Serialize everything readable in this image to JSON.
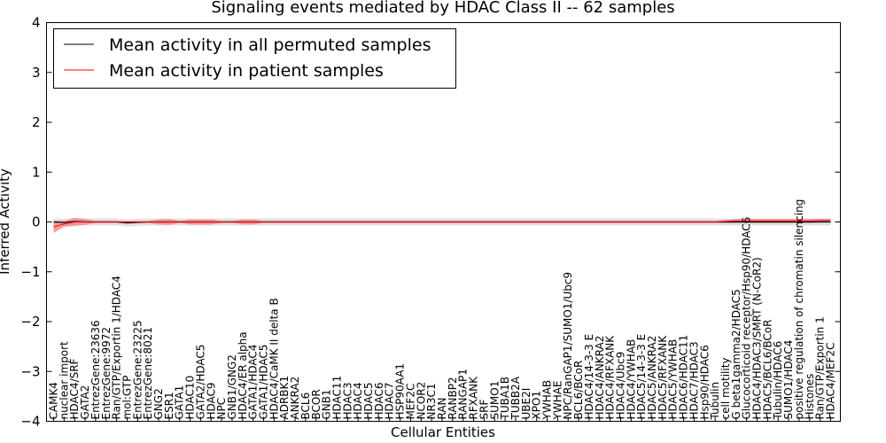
{
  "chart_data": {
    "type": "line",
    "title": "Signaling events mediated by HDAC Class II -- 62 samples",
    "xlabel": "Cellular Entities",
    "ylabel": "Inferred Activity",
    "ylim": [
      -4,
      4
    ],
    "yticks": [
      4,
      3,
      2,
      1,
      0,
      -1,
      -2,
      -3,
      -4
    ],
    "ytick_labels": [
      "4",
      "3",
      "2",
      "1",
      "0",
      "−1",
      "−2",
      "−3",
      "−4"
    ],
    "legend_position": "top-left",
    "categories": [
      "CAMK4",
      "nuclear import",
      "HDAC4/SRF",
      "GATA2",
      "EntrezGene:23636",
      "EntrezGene:9972",
      "Ran/GTP/Exportin 1/HDAC4",
      "mol:GTP",
      "EntrezGene:23225",
      "EntrezGene:8021",
      "GNG2",
      "ESR1",
      "GATA1",
      "HDAC10",
      "GATA2/HDAC5",
      "HDAC9",
      "NPC",
      "GNB1/GNG2",
      "HDAC4/ER alpha",
      "GATA1/HDAC4",
      "GATA1/HDAC5",
      "HDAC4/CaMK II delta B",
      "ADRBK1",
      "ANKRA2",
      "BCL6",
      "BCOR",
      "GNB1",
      "HDAC11",
      "HDAC3",
      "HDAC4",
      "HDAC5",
      "HDAC6",
      "HDAC7",
      "HSP90AA1",
      "MEF2C",
      "NCOR2",
      "NR3C1",
      "RAN",
      "RANBP2",
      "RANGAP1",
      "RFXANK",
      "SRF",
      "SUMO1",
      "TUBA1B",
      "TUBB2A",
      "UBE2I",
      "XPO1",
      "YWHAB",
      "YWHAE",
      "NPC/RanGAP1/SUMO1/Ubc9",
      "BCL6/BCoR",
      "HDAC4/14-3-3 E",
      "HDAC4/ANKRA2",
      "HDAC4/RFXANK",
      "HDAC4/Ubc9",
      "HDAC4/YWHAB",
      "HDAC5/14-3-3 E",
      "HDAC5/ANKRA2",
      "HDAC5/RFXANK",
      "HDAC5/YWHAB",
      "HDAC6/HDAC11",
      "HDAC7/HDAC3",
      "Hsp90/HDAC6",
      "Tubulin",
      "cell motility",
      "G beta1gamma2/HDAC5",
      "Glucocorticoid receptor/Hsp90/HDAC6",
      "HDAC4/HDAC3/SMRT (N-CoR2)",
      "HDAC5/BCL6/BCoR",
      "Tubulin/HDAC6",
      "SUMO1/HDAC4",
      "positive regulation of chromatin silencing",
      "Histones",
      "Ran/GTP/Exportin 1",
      "HDAC4/MEF2C"
    ],
    "series": [
      {
        "name": "Mean activity in all permuted samples",
        "color": "#000000",
        "values": [
          0.0,
          -0.01,
          0.01,
          0.0,
          0.0,
          0.0,
          0.0,
          -0.02,
          -0.01,
          0.0,
          0.0,
          0.0,
          0.0,
          0.0,
          0.0,
          0.0,
          0.0,
          0.0,
          0.0,
          0.0,
          0.0,
          0.0,
          0.0,
          0.0,
          0.0,
          0.0,
          0.0,
          0.0,
          0.0,
          0.0,
          0.0,
          0.0,
          0.0,
          0.0,
          0.0,
          0.0,
          0.0,
          0.0,
          0.0,
          0.0,
          0.0,
          0.0,
          0.0,
          0.0,
          0.0,
          0.0,
          0.0,
          0.0,
          0.0,
          0.0,
          0.0,
          0.0,
          0.0,
          0.0,
          0.0,
          0.0,
          0.0,
          0.0,
          0.0,
          0.0,
          0.0,
          0.0,
          0.0,
          0.0,
          0.0,
          0.0,
          0.0,
          0.0,
          0.0,
          0.0,
          0.0,
          0.0,
          0.0,
          0.0,
          0.0
        ]
      },
      {
        "name": "Mean activity in patient samples",
        "color": "#ff0000",
        "values": [
          -0.1,
          -0.04,
          0.0,
          0.0,
          0.0,
          0.0,
          0.0,
          0.0,
          0.0,
          0.0,
          0.0,
          0.0,
          0.0,
          0.0,
          0.0,
          0.0,
          0.0,
          0.0,
          0.0,
          0.0,
          0.0,
          0.0,
          0.0,
          0.0,
          0.0,
          0.0,
          0.0,
          0.0,
          0.0,
          0.0,
          0.0,
          0.0,
          0.0,
          0.0,
          0.0,
          0.0,
          0.0,
          0.0,
          0.0,
          0.0,
          0.0,
          0.0,
          0.0,
          0.0,
          0.0,
          0.0,
          0.0,
          0.0,
          0.0,
          0.0,
          0.0,
          0.0,
          0.0,
          0.0,
          0.0,
          0.0,
          0.0,
          0.0,
          0.0,
          0.0,
          0.0,
          0.0,
          0.0,
          0.0,
          0.01,
          0.02,
          0.02,
          0.02,
          0.02,
          0.02,
          0.02,
          0.02,
          0.02,
          0.03,
          0.03
        ]
      }
    ],
    "patient_band": [
      0.12,
      0.06,
      0.08,
      0.06,
      0.02,
      0.02,
      0.02,
      0.02,
      0.02,
      0.02,
      0.05,
      0.06,
      0.02,
      0.05,
      0.05,
      0.05,
      0.02,
      0.02,
      0.05,
      0.05,
      0.02,
      0.02,
      0.02,
      0.02,
      0.02,
      0.02,
      0.02,
      0.02,
      0.02,
      0.02,
      0.02,
      0.02,
      0.02,
      0.02,
      0.02,
      0.02,
      0.02,
      0.02,
      0.02,
      0.02,
      0.02,
      0.02,
      0.02,
      0.02,
      0.02,
      0.02,
      0.02,
      0.02,
      0.02,
      0.02,
      0.02,
      0.02,
      0.02,
      0.02,
      0.02,
      0.02,
      0.02,
      0.02,
      0.02,
      0.02,
      0.02,
      0.02,
      0.02,
      0.02,
      0.03,
      0.04,
      0.04,
      0.04,
      0.04,
      0.04,
      0.04,
      0.04,
      0.04,
      0.03,
      0.03
    ],
    "permuted_band": 0.07,
    "colors": {
      "band_patient": "#f28080",
      "band_permuted": "#d8d8e0",
      "axis": "#000000"
    }
  }
}
